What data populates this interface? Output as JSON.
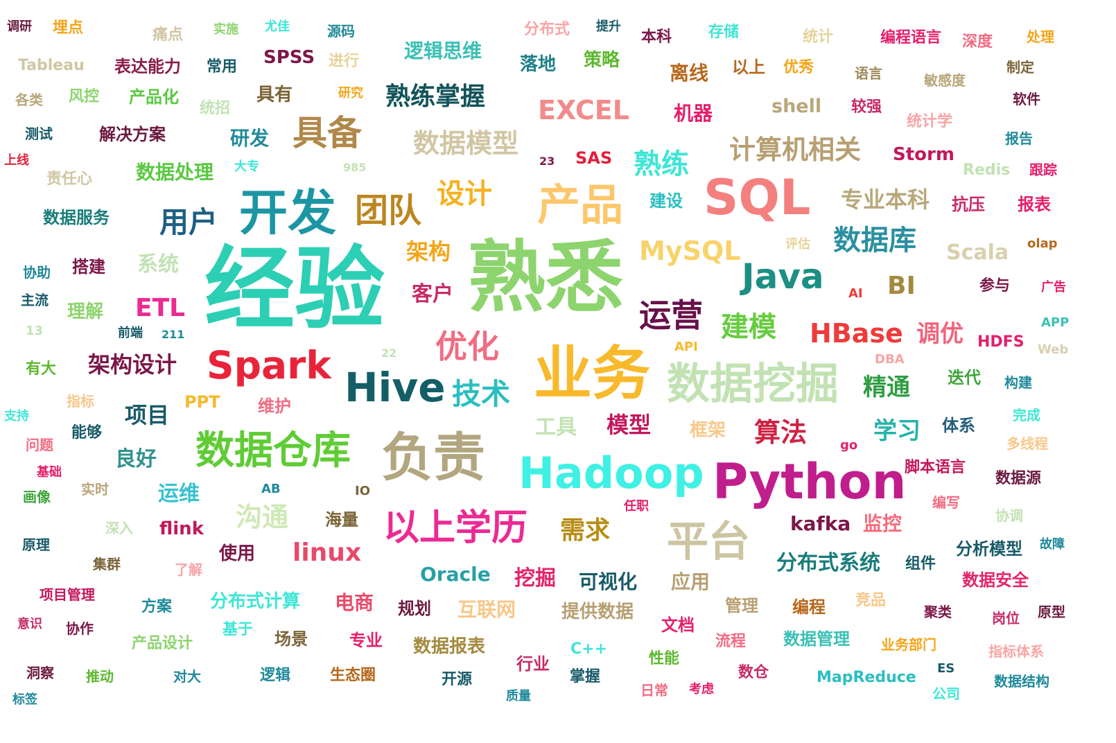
{
  "words": [
    {
      "text": "经验",
      "color": "#2ccfb4"
    },
    {
      "text": "熟悉",
      "color": "#8dd46f"
    },
    {
      "text": "业务",
      "color": "#f8b92b"
    },
    {
      "text": "SQL",
      "color": "#f47f7f"
    },
    {
      "text": "Python",
      "color": "#c01e8c"
    },
    {
      "text": "Hadoop",
      "color": "#3ff0e4"
    },
    {
      "text": "负责",
      "color": "#b2a67f"
    },
    {
      "text": "开发",
      "color": "#1d96a3"
    },
    {
      "text": "数据挖掘",
      "color": "#c2e2b3"
    },
    {
      "text": "平台",
      "color": "#cdc4a2"
    },
    {
      "text": "数据仓库",
      "color": "#5fcc35"
    },
    {
      "text": "Hive",
      "color": "#135e67"
    },
    {
      "text": "Spark",
      "color": "#e9243a"
    },
    {
      "text": "以上学历",
      "color": "#ec2a93"
    },
    {
      "text": "Java",
      "color": "#1c8f83"
    },
    {
      "text": "产品",
      "color": "#fcc76c"
    },
    {
      "text": "具备",
      "color": "#b0884a"
    },
    {
      "text": "团队",
      "color": "#bc8620"
    },
    {
      "text": "用户",
      "color": "#1d5f84"
    },
    {
      "text": "运营",
      "color": "#68104a"
    },
    {
      "text": "优化",
      "color": "#f16c82"
    },
    {
      "text": "技术",
      "color": "#2bbec1"
    },
    {
      "text": "HBase",
      "color": "#ee3b3b"
    },
    {
      "text": "数据库",
      "color": "#2a8fa0"
    },
    {
      "text": "计算机相关",
      "color": "#b79f72"
    },
    {
      "text": "熟练掌握",
      "color": "#125359"
    },
    {
      "text": "数据模型",
      "color": "#d1c6a3"
    },
    {
      "text": "EXCEL",
      "color": "#f28b8b"
    },
    {
      "text": "熟练",
      "color": "#3ee6d6"
    },
    {
      "text": "MySQL",
      "color": "#f8d36b"
    },
    {
      "text": "建模",
      "color": "#66cc3f"
    },
    {
      "text": "设计",
      "color": "#f5b21f"
    },
    {
      "text": "精通",
      "color": "#2e9c41"
    },
    {
      "text": "调优",
      "color": "#f2647c"
    },
    {
      "text": "架构设计",
      "color": "#7b1749"
    },
    {
      "text": "ETL",
      "color": "#ec2a93"
    },
    {
      "text": "架构",
      "color": "#f3a518"
    },
    {
      "text": "客户",
      "color": "#c62b68"
    },
    {
      "text": "linux",
      "color": "#e74a6a"
    },
    {
      "text": "沟通",
      "color": "#cfe9b7"
    },
    {
      "text": "需求",
      "color": "#b98d15"
    },
    {
      "text": "Oracle",
      "color": "#28a0a8"
    },
    {
      "text": "分布式系统",
      "color": "#187d7a"
    },
    {
      "text": "算法",
      "color": "#ce2344"
    },
    {
      "text": "学习",
      "color": "#25b3ab"
    },
    {
      "text": "模型",
      "color": "#c2185b"
    },
    {
      "text": "项目",
      "color": "#185a68"
    },
    {
      "text": "Storm",
      "color": "#c2185b"
    },
    {
      "text": "专业本科",
      "color": "#b8a77a"
    },
    {
      "text": "Scala",
      "color": "#d9cfae"
    },
    {
      "text": "BI",
      "color": "#a48a3e"
    },
    {
      "text": "数据处理",
      "color": "#5ac941"
    },
    {
      "text": "kafka",
      "color": "#7b1749"
    },
    {
      "text": "监控",
      "color": "#f66b7c"
    },
    {
      "text": "运维",
      "color": "#36c1d1"
    },
    {
      "text": "良好",
      "color": "#31928d"
    },
    {
      "text": "挖掘",
      "color": "#e4246a"
    },
    {
      "text": "可视化",
      "color": "#185a68"
    },
    {
      "text": "应用",
      "color": "#b79f72"
    },
    {
      "text": "互联网",
      "color": "#f8c78a"
    },
    {
      "text": "电商",
      "color": "#e74a6a"
    },
    {
      "text": "shell",
      "color": "#b8a77a"
    },
    {
      "text": "机器",
      "color": "#e41f6b"
    },
    {
      "text": "逻辑思维",
      "color": "#3bc0b6"
    },
    {
      "text": "离线",
      "color": "#b6671b"
    },
    {
      "text": "落地",
      "color": "#20808b"
    },
    {
      "text": "策略",
      "color": "#5fb830"
    },
    {
      "text": "表达能力",
      "color": "#8b1c4a"
    },
    {
      "text": "SPSS",
      "color": "#7b1749"
    },
    {
      "text": "解决方案",
      "color": "#6b1a3f"
    },
    {
      "text": "研发",
      "color": "#208a9a"
    },
    {
      "text": "产品化",
      "color": "#5ac941"
    },
    {
      "text": "具有",
      "color": "#7a6336"
    },
    {
      "text": "数据服务",
      "color": "#187d7a"
    },
    {
      "text": "搭建",
      "color": "#7b1749"
    },
    {
      "text": "系统",
      "color": "#c2e2b3"
    },
    {
      "text": "理解",
      "color": "#8dd46f"
    },
    {
      "text": "项目管理",
      "color": "#c2185b"
    },
    {
      "text": "分布式计算",
      "color": "#3ee6d6"
    },
    {
      "text": "提供数据",
      "color": "#b79f72"
    },
    {
      "text": "数据报表",
      "color": "#a48a3e"
    },
    {
      "text": "数据管理",
      "color": "#3bc0b6"
    },
    {
      "text": "分析模型",
      "color": "#185a68"
    },
    {
      "text": "数据安全",
      "color": "#e4246a"
    },
    {
      "text": "MapReduce",
      "color": "#2bbec1"
    },
    {
      "text": "脚本语言",
      "color": "#c2185b"
    },
    {
      "text": "数据源",
      "color": "#6b1a3f"
    },
    {
      "text": "迭代",
      "color": "#3ea53b"
    },
    {
      "text": "体系",
      "color": "#25607a"
    },
    {
      "text": "框架",
      "color": "#f8c78a"
    },
    {
      "text": "工具",
      "color": "#c2e2b3"
    },
    {
      "text": "flink",
      "color": "#c2185b"
    },
    {
      "text": "使用",
      "color": "#7b1749"
    },
    {
      "text": "海量",
      "color": "#7a6336"
    },
    {
      "text": "维护",
      "color": "#f16c82"
    },
    {
      "text": "PPT",
      "color": "#f8b92b"
    },
    {
      "text": "SAS",
      "color": "#e41f3b"
    },
    {
      "text": "建设",
      "color": "#2bbec1"
    },
    {
      "text": "抗压",
      "color": "#c62b68"
    },
    {
      "text": "报表",
      "color": "#e41f6b"
    },
    {
      "text": "Redis",
      "color": "#c2e2b3"
    },
    {
      "text": "统计学",
      "color": "#f8a5a5"
    },
    {
      "text": "较强",
      "color": "#c62b68"
    },
    {
      "text": "编程语言",
      "color": "#e41f6b"
    },
    {
      "text": "存储",
      "color": "#3ee6d6"
    },
    {
      "text": "分布式",
      "color": "#f8a5a5"
    },
    {
      "text": "本科",
      "color": "#7b1749"
    },
    {
      "text": "以上",
      "color": "#b6671b"
    },
    {
      "text": "优秀",
      "color": "#f3a518"
    },
    {
      "text": "统计",
      "color": "#e6d39a"
    },
    {
      "text": "深度",
      "color": "#f16c82"
    },
    {
      "text": "处理",
      "color": "#f3a518"
    },
    {
      "text": "语言",
      "color": "#9e8a5c"
    },
    {
      "text": "敏感度",
      "color": "#b8a77a"
    },
    {
      "text": "制定",
      "color": "#7a6336"
    },
    {
      "text": "软件",
      "color": "#6b1a3f"
    },
    {
      "text": "报告",
      "color": "#208a9a"
    },
    {
      "text": "跟踪",
      "color": "#e41f6b"
    },
    {
      "text": "olap",
      "color": "#b6671b"
    },
    {
      "text": "评估",
      "color": "#e6d39a"
    },
    {
      "text": "参与",
      "color": "#7b1749"
    },
    {
      "text": "广告",
      "color": "#e41f6b"
    },
    {
      "text": "AI",
      "color": "#ee3b3b"
    },
    {
      "text": "APP",
      "color": "#3bc0b6"
    },
    {
      "text": "Web",
      "color": "#d9cfae"
    },
    {
      "text": "HDFS",
      "color": "#e41f6b"
    },
    {
      "text": "API",
      "color": "#f8b92b"
    },
    {
      "text": "DBA",
      "color": "#f8a5a5"
    },
    {
      "text": "构建",
      "color": "#208a9a"
    },
    {
      "text": "完成",
      "color": "#3ee6d6"
    },
    {
      "text": "多线程",
      "color": "#f8c78a"
    },
    {
      "text": "go",
      "color": "#e41f6b"
    },
    {
      "text": "原型",
      "color": "#6b1a3f"
    },
    {
      "text": "岗位",
      "color": "#c62b68"
    },
    {
      "text": "聚类",
      "color": "#7b1749"
    },
    {
      "text": "竞品",
      "color": "#f8c78a"
    },
    {
      "text": "故障",
      "color": "#208a9a"
    },
    {
      "text": "协调",
      "color": "#c2e2b3"
    },
    {
      "text": "编写",
      "color": "#f16c82"
    },
    {
      "text": "组件",
      "color": "#185a68"
    },
    {
      "text": "管理",
      "color": "#b79f72"
    },
    {
      "text": "编程",
      "color": "#b6671b"
    },
    {
      "text": "流程",
      "color": "#f16c82"
    },
    {
      "text": "业务部门",
      "color": "#f3a518"
    },
    {
      "text": "指标体系",
      "color": "#f8a5a5"
    },
    {
      "text": "数据结构",
      "color": "#208a9a"
    },
    {
      "text": "公司",
      "color": "#3ee6d6"
    },
    {
      "text": "ES",
      "color": "#185a68"
    },
    {
      "text": "考虑",
      "color": "#e41f6b"
    },
    {
      "text": "日常",
      "color": "#f16c82"
    },
    {
      "text": "数仓",
      "color": "#c62b68"
    },
    {
      "text": "文档",
      "color": "#e41f6b"
    },
    {
      "text": "性能",
      "color": "#5fb830"
    },
    {
      "text": "C++",
      "color": "#3ee6d6"
    },
    {
      "text": "掌握",
      "color": "#185a68"
    },
    {
      "text": "行业",
      "color": "#c62b68"
    },
    {
      "text": "质量",
      "color": "#208a9a"
    },
    {
      "text": "开源",
      "color": "#185a68"
    },
    {
      "text": "规划",
      "color": "#6b1a3f"
    },
    {
      "text": "专业",
      "color": "#e41f6b"
    },
    {
      "text": "生态圈",
      "color": "#b6671b"
    },
    {
      "text": "场景",
      "color": "#7a6336"
    },
    {
      "text": "逻辑",
      "color": "#208a9a"
    },
    {
      "text": "基于",
      "color": "#3ee6d6"
    },
    {
      "text": "产品设计",
      "color": "#8dd46f"
    },
    {
      "text": "对大",
      "color": "#208a9a"
    },
    {
      "text": "方案",
      "color": "#208a9a"
    },
    {
      "text": "推动",
      "color": "#5fb830"
    },
    {
      "text": "协作",
      "color": "#7b1749"
    },
    {
      "text": "洞察",
      "color": "#6b1a3f"
    },
    {
      "text": "标签",
      "color": "#208a9a"
    },
    {
      "text": "意识",
      "color": "#c62b68"
    },
    {
      "text": "集群",
      "color": "#7a6336"
    },
    {
      "text": "了解",
      "color": "#f8a5a5"
    },
    {
      "text": "原理",
      "color": "#185a68"
    },
    {
      "text": "深入",
      "color": "#c2e2b3"
    },
    {
      "text": "实时",
      "color": "#b8a77a"
    },
    {
      "text": "画像",
      "color": "#3ea53b"
    },
    {
      "text": "基础",
      "color": "#e41f6b"
    },
    {
      "text": "问题",
      "color": "#f16c82"
    },
    {
      "text": "能够",
      "color": "#185a68"
    },
    {
      "text": "支持",
      "color": "#3ee6d6"
    },
    {
      "text": "指标",
      "color": "#f8c78a"
    },
    {
      "text": "有大",
      "color": "#5fb830"
    },
    {
      "text": "AB",
      "color": "#208a9a"
    },
    {
      "text": "IO",
      "color": "#7a6336"
    },
    {
      "text": "任职",
      "color": "#e41f6b"
    },
    {
      "text": "22",
      "color": "#c2e2b3"
    },
    {
      "text": "13",
      "color": "#c2e2b3"
    },
    {
      "text": "前端",
      "color": "#185a68"
    },
    {
      "text": "211",
      "color": "#208a9a"
    },
    {
      "text": "主流",
      "color": "#185a68"
    },
    {
      "text": "协助",
      "color": "#208a9a"
    },
    {
      "text": "985",
      "color": "#c2e2b3"
    },
    {
      "text": "大专",
      "color": "#3ee6d6"
    },
    {
      "text": "责任心",
      "color": "#d1c6a3"
    },
    {
      "text": "上线",
      "color": "#e41f3b"
    },
    {
      "text": "测试",
      "color": "#185a68"
    },
    {
      "text": "各类",
      "color": "#b8a77a"
    },
    {
      "text": "风控",
      "color": "#8dd46f"
    },
    {
      "text": "统招",
      "color": "#c2e2b3"
    },
    {
      "text": "研究",
      "color": "#f3a518"
    },
    {
      "text": "Tableau",
      "color": "#d1c6a3"
    },
    {
      "text": "常用",
      "color": "#185a68"
    },
    {
      "text": "进行",
      "color": "#e6d39a"
    },
    {
      "text": "痛点",
      "color": "#d1c6a3"
    },
    {
      "text": "实施",
      "color": "#8dd46f"
    },
    {
      "text": "尤佳",
      "color": "#3ee6d6"
    },
    {
      "text": "源码",
      "color": "#208a9a"
    },
    {
      "text": "提升",
      "color": "#185a68"
    },
    {
      "text": "调研",
      "color": "#6b1a3f"
    },
    {
      "text": "埋点",
      "color": "#f3a518"
    },
    {
      "text": "23",
      "color": "#7b1749"
    }
  ]
}
